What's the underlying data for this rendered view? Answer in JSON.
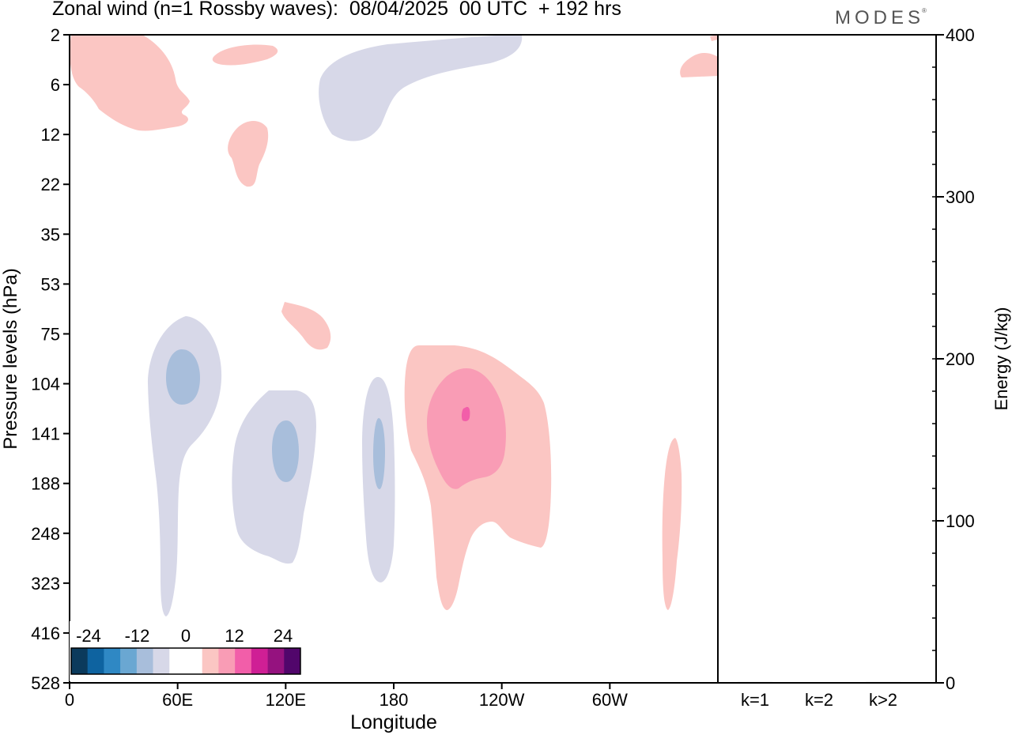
{
  "header": {
    "title": "Zonal wind (n=1 Rossby waves):  08/04/2025  00 UTC  + 192 hrs",
    "brand": "MODES"
  },
  "chart_data": [
    {
      "type": "heatmap",
      "title": "Zonal wind (n=1 Rossby waves):  08/04/2025  00 UTC  + 192 hrs",
      "xlabel": "Longitude",
      "ylabel": "Pressure levels (hPa)",
      "x_ticks": [
        "0",
        "60E",
        "120E",
        "180",
        "120W",
        "60W"
      ],
      "x_tick_positions_deg": [
        0,
        60,
        120,
        180,
        240,
        300
      ],
      "x_range_deg": [
        0,
        360
      ],
      "y_ticks": [
        "2",
        "6",
        "12",
        "22",
        "35",
        "53",
        "75",
        "104",
        "141",
        "188",
        "248",
        "323",
        "416",
        "528"
      ],
      "y_scale": "pressure levels (reversed)",
      "grid": false,
      "colorbar": {
        "placement": "bottom-left",
        "tick_labels": [
          "-24",
          "-12",
          "0",
          "12",
          "24"
        ],
        "colors": [
          "#0b3a5c",
          "#0e63a0",
          "#2f88c4",
          "#6aa7d2",
          "#a8bedb",
          "#d7d8e8",
          "#ffffff",
          "#ffffff",
          "#fbc6c3",
          "#f99cb5",
          "#f25ea9",
          "#cf1f95",
          "#95127f",
          "#51066b"
        ]
      },
      "contours": [
        {
          "id": "neg-strat",
          "sign": "negative",
          "level": -4,
          "color": "#d7d8e8"
        },
        {
          "id": "pos-strat-west",
          "sign": "positive",
          "level": 4,
          "color": "#fbc6c3"
        },
        {
          "id": "pos-strat-small",
          "sign": "positive",
          "level": 4,
          "color": "#fbc6c3"
        },
        {
          "id": "pos-strat-12hpa",
          "sign": "positive",
          "level": 4,
          "color": "#fbc6c3"
        },
        {
          "id": "pos-strat-east",
          "sign": "positive",
          "level": 4,
          "color": "#fbc6c3"
        },
        {
          "id": "pos-75hpa",
          "sign": "positive",
          "level": 4,
          "color": "#fbc6c3"
        },
        {
          "id": "neg-60e",
          "sign": "negative",
          "level": -4,
          "color": "#d7d8e8"
        },
        {
          "id": "neg-60e-core",
          "sign": "negative",
          "level": -8,
          "color": "#a8bedb"
        },
        {
          "id": "neg-120e",
          "sign": "negative",
          "level": -4,
          "color": "#d7d8e8"
        },
        {
          "id": "neg-120e-core",
          "sign": "negative",
          "level": -8,
          "color": "#a8bedb"
        },
        {
          "id": "neg-180",
          "sign": "negative",
          "level": -4,
          "color": "#d7d8e8"
        },
        {
          "id": "neg-180-core",
          "sign": "negative",
          "level": -8,
          "color": "#a8bedb"
        },
        {
          "id": "pos-150w",
          "sign": "positive",
          "level": 4,
          "color": "#fbc6c3"
        },
        {
          "id": "pos-150w-core",
          "sign": "positive",
          "level": 8,
          "color": "#f99cb5"
        },
        {
          "id": "pos-150w-peak",
          "sign": "positive",
          "level": 12,
          "color": "#f25ea9"
        },
        {
          "id": "pos-30w",
          "sign": "positive",
          "level": 4,
          "color": "#fbc6c3"
        }
      ]
    },
    {
      "type": "bar",
      "categories": [
        "k=1",
        "k=2",
        "k>2"
      ],
      "values": [
        0.5,
        0.3,
        0.5
      ],
      "ylabel": "Energy (J/kg)",
      "ylim": [
        0,
        400
      ],
      "y_ticks": [
        0,
        100,
        200,
        300,
        400
      ],
      "y_minor_step": 20,
      "yaxis_side": "right"
    }
  ]
}
